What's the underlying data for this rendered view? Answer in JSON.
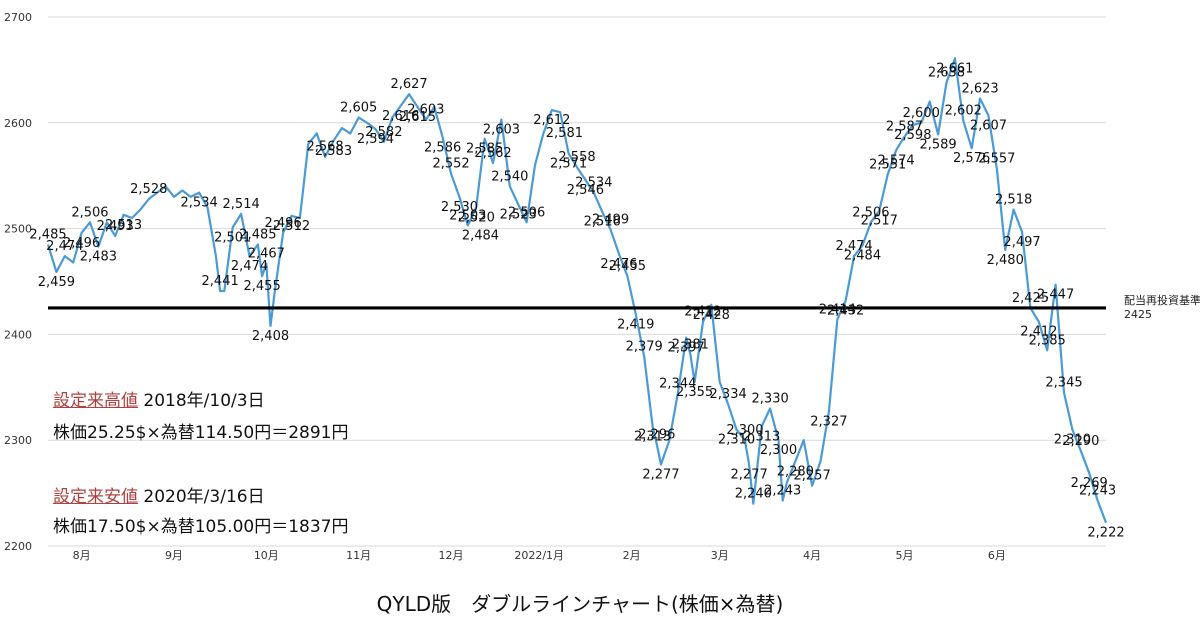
{
  "chart_data": {
    "type": "line",
    "title": "QYLD版　ダブルラインチャート(株価×為替)",
    "ylim": [
      2200,
      2700
    ],
    "yticks": [
      2200,
      2300,
      2400,
      2500,
      2600,
      2700
    ],
    "xlabels": [
      {
        "label": "8月",
        "x": 8
      },
      {
        "label": "9月",
        "x": 30
      },
      {
        "label": "10月",
        "x": 52
      },
      {
        "label": "11月",
        "x": 74
      },
      {
        "label": "12月",
        "x": 96
      },
      {
        "label": "2022/1月",
        "x": 117
      },
      {
        "label": "2月",
        "x": 139
      },
      {
        "label": "3月",
        "x": 160
      },
      {
        "label": "4月",
        "x": 182
      },
      {
        "label": "5月",
        "x": 204
      },
      {
        "label": "6月",
        "x": 226
      }
    ],
    "xlim": [
      0,
      252
    ],
    "grid": true,
    "series": [
      {
        "color": "#4a9ad8",
        "points": [
          [
            0,
            2485
          ],
          [
            2,
            2459
          ],
          [
            4,
            2474
          ],
          [
            6,
            2468
          ],
          [
            8,
            2496
          ],
          [
            10,
            2506
          ],
          [
            12,
            2483
          ],
          [
            14,
            2506
          ],
          [
            16,
            2493
          ],
          [
            18,
            2513
          ],
          [
            20,
            2510
          ],
          [
            22,
            2518
          ],
          [
            24,
            2528
          ],
          [
            26,
            2534
          ],
          [
            28,
            2540
          ],
          [
            30,
            2530
          ],
          [
            32,
            2536
          ],
          [
            34,
            2530
          ],
          [
            36,
            2534
          ],
          [
            38,
            2520
          ],
          [
            40,
            2474
          ],
          [
            41,
            2441
          ],
          [
            42,
            2441
          ],
          [
            44,
            2501
          ],
          [
            46,
            2514
          ],
          [
            48,
            2474
          ],
          [
            50,
            2485
          ],
          [
            51,
            2455
          ],
          [
            52,
            2467
          ],
          [
            53,
            2408
          ],
          [
            54,
            2440
          ],
          [
            56,
            2496
          ],
          [
            58,
            2512
          ],
          [
            60,
            2510
          ],
          [
            62,
            2580
          ],
          [
            64,
            2590
          ],
          [
            66,
            2568
          ],
          [
            68,
            2583
          ],
          [
            70,
            2595
          ],
          [
            72,
            2590
          ],
          [
            74,
            2605
          ],
          [
            76,
            2600
          ],
          [
            78,
            2594
          ],
          [
            80,
            2582
          ],
          [
            82,
            2605
          ],
          [
            84,
            2616
          ],
          [
            86,
            2627
          ],
          [
            88,
            2615
          ],
          [
            90,
            2603
          ],
          [
            92,
            2615
          ],
          [
            94,
            2586
          ],
          [
            96,
            2552
          ],
          [
            98,
            2530
          ],
          [
            100,
            2503
          ],
          [
            102,
            2520
          ],
          [
            104,
            2585
          ],
          [
            106,
            2562
          ],
          [
            108,
            2603
          ],
          [
            110,
            2540
          ],
          [
            112,
            2523
          ],
          [
            114,
            2506
          ],
          [
            116,
            2560
          ],
          [
            118,
            2590
          ],
          [
            120,
            2612
          ],
          [
            122,
            2610
          ],
          [
            124,
            2571
          ],
          [
            126,
            2558
          ],
          [
            128,
            2546
          ],
          [
            130,
            2534
          ],
          [
            132,
            2516
          ],
          [
            134,
            2499
          ],
          [
            136,
            2476
          ],
          [
            138,
            2455
          ],
          [
            140,
            2419
          ],
          [
            142,
            2379
          ],
          [
            144,
            2313
          ],
          [
            145,
            2296
          ],
          [
            146,
            2277
          ],
          [
            148,
            2300
          ],
          [
            150,
            2344
          ],
          [
            152,
            2397
          ],
          [
            153,
            2381
          ],
          [
            154,
            2355
          ],
          [
            156,
            2412
          ],
          [
            158,
            2428
          ],
          [
            160,
            2355
          ],
          [
            162,
            2334
          ],
          [
            164,
            2310
          ],
          [
            166,
            2300
          ],
          [
            167,
            2277
          ],
          [
            168,
            2240
          ],
          [
            170,
            2313
          ],
          [
            172,
            2330
          ],
          [
            174,
            2300
          ],
          [
            175,
            2243
          ],
          [
            176,
            2260
          ],
          [
            178,
            2280
          ],
          [
            180,
            2300
          ],
          [
            182,
            2257
          ],
          [
            184,
            2280
          ],
          [
            186,
            2327
          ],
          [
            188,
            2414
          ],
          [
            190,
            2432
          ],
          [
            192,
            2474
          ],
          [
            194,
            2484
          ],
          [
            196,
            2506
          ],
          [
            198,
            2517
          ],
          [
            200,
            2551
          ],
          [
            202,
            2574
          ],
          [
            204,
            2587
          ],
          [
            206,
            2598
          ],
          [
            208,
            2600
          ],
          [
            210,
            2620
          ],
          [
            212,
            2589
          ],
          [
            214,
            2638
          ],
          [
            216,
            2661
          ],
          [
            218,
            2602
          ],
          [
            220,
            2576
          ],
          [
            222,
            2623
          ],
          [
            224,
            2607
          ],
          [
            226,
            2557
          ],
          [
            228,
            2480
          ],
          [
            230,
            2518
          ],
          [
            232,
            2497
          ],
          [
            234,
            2425
          ],
          [
            236,
            2412
          ],
          [
            238,
            2385
          ],
          [
            240,
            2447
          ],
          [
            242,
            2345
          ],
          [
            244,
            2310
          ],
          [
            246,
            2290
          ],
          [
            248,
            2269
          ],
          [
            250,
            2243
          ],
          [
            252,
            2222
          ]
        ]
      }
    ],
    "data_labels": [
      {
        "text": "2,485",
        "x": 0,
        "y": 2485
      },
      {
        "text": "2,459",
        "x": 2,
        "y": 2459
      },
      {
        "text": "2,474",
        "x": 4,
        "y": 2474
      },
      {
        "text": "2,496",
        "x": 8,
        "y": 2496
      },
      {
        "text": "2,506",
        "x": 10,
        "y": 2506
      },
      {
        "text": "2,483",
        "x": 12,
        "y": 2483
      },
      {
        "text": "2,493",
        "x": 16,
        "y": 2493
      },
      {
        "text": "2,513",
        "x": 18,
        "y": 2513
      },
      {
        "text": "2,528",
        "x": 24,
        "y": 2528
      },
      {
        "text": "2,534",
        "x": 36,
        "y": 2534
      },
      {
        "text": "2,441",
        "x": 41,
        "y": 2441
      },
      {
        "text": "2,501",
        "x": 44,
        "y": 2501
      },
      {
        "text": "2,514",
        "x": 46,
        "y": 2514
      },
      {
        "text": "2,474",
        "x": 48,
        "y": 2474
      },
      {
        "text": "2,485",
        "x": 50,
        "y": 2485
      },
      {
        "text": "2,455",
        "x": 51,
        "y": 2455
      },
      {
        "text": "2,467",
        "x": 52,
        "y": 2467
      },
      {
        "text": "2,408",
        "x": 53,
        "y": 2408
      },
      {
        "text": "2,496",
        "x": 56,
        "y": 2496
      },
      {
        "text": "2,512",
        "x": 58,
        "y": 2512
      },
      {
        "text": "2,568",
        "x": 66,
        "y": 2568
      },
      {
        "text": "2,583",
        "x": 68,
        "y": 2583
      },
      {
        "text": "2,605",
        "x": 74,
        "y": 2605
      },
      {
        "text": "2,594",
        "x": 78,
        "y": 2594
      },
      {
        "text": "2,582",
        "x": 80,
        "y": 2582
      },
      {
        "text": "2,616",
        "x": 84,
        "y": 2616
      },
      {
        "text": "2,627",
        "x": 86,
        "y": 2627
      },
      {
        "text": "2,615",
        "x": 88,
        "y": 2615
      },
      {
        "text": "2,603",
        "x": 90,
        "y": 2603
      },
      {
        "text": "2,586",
        "x": 94,
        "y": 2586
      },
      {
        "text": "2,552",
        "x": 96,
        "y": 2552
      },
      {
        "text": "2,530",
        "x": 98,
        "y": 2530
      },
      {
        "text": "2,503",
        "x": 100,
        "y": 2503
      },
      {
        "text": "2,520",
        "x": 102,
        "y": 2520
      },
      {
        "text": "2,484",
        "x": 103,
        "y": 2484
      },
      {
        "text": "2,585",
        "x": 104,
        "y": 2585
      },
      {
        "text": "2,562",
        "x": 106,
        "y": 2562
      },
      {
        "text": "2,603",
        "x": 108,
        "y": 2603
      },
      {
        "text": "2,540",
        "x": 110,
        "y": 2540
      },
      {
        "text": "2,523",
        "x": 112,
        "y": 2523
      },
      {
        "text": "2,506",
        "x": 114,
        "y": 2506
      },
      {
        "text": "2,612",
        "x": 120,
        "y": 2612
      },
      {
        "text": "2,581",
        "x": 123,
        "y": 2581
      },
      {
        "text": "2,571",
        "x": 124,
        "y": 2571
      },
      {
        "text": "2,558",
        "x": 126,
        "y": 2558
      },
      {
        "text": "2,546",
        "x": 128,
        "y": 2546
      },
      {
        "text": "2,534",
        "x": 130,
        "y": 2534
      },
      {
        "text": "2,516",
        "x": 132,
        "y": 2516
      },
      {
        "text": "2,499",
        "x": 134,
        "y": 2499
      },
      {
        "text": "2,476",
        "x": 136,
        "y": 2476
      },
      {
        "text": "2,455",
        "x": 138,
        "y": 2455
      },
      {
        "text": "2,419",
        "x": 140,
        "y": 2419
      },
      {
        "text": "2,379",
        "x": 142,
        "y": 2379
      },
      {
        "text": "2,313",
        "x": 144,
        "y": 2313
      },
      {
        "text": "2,296",
        "x": 145,
        "y": 2296
      },
      {
        "text": "2,277",
        "x": 146,
        "y": 2277
      },
      {
        "text": "2,344",
        "x": 150,
        "y": 2344
      },
      {
        "text": "2,397",
        "x": 152,
        "y": 2397
      },
      {
        "text": "2,381",
        "x": 153,
        "y": 2381
      },
      {
        "text": "2,355",
        "x": 154,
        "y": 2355
      },
      {
        "text": "2,412",
        "x": 156,
        "y": 2412
      },
      {
        "text": "2,428",
        "x": 158,
        "y": 2428
      },
      {
        "text": "2,334",
        "x": 162,
        "y": 2334
      },
      {
        "text": "2,310",
        "x": 164,
        "y": 2310
      },
      {
        "text": "2,300",
        "x": 166,
        "y": 2300
      },
      {
        "text": "2,277",
        "x": 167,
        "y": 2277
      },
      {
        "text": "2,240",
        "x": 168,
        "y": 2240
      },
      {
        "text": "2,313",
        "x": 170,
        "y": 2313
      },
      {
        "text": "2,330",
        "x": 172,
        "y": 2330
      },
      {
        "text": "2,300",
        "x": 174,
        "y": 2300
      },
      {
        "text": "2,243",
        "x": 175,
        "y": 2243
      },
      {
        "text": "2,280",
        "x": 178,
        "y": 2280
      },
      {
        "text": "2,257",
        "x": 182,
        "y": 2257
      },
      {
        "text": "2,327",
        "x": 186,
        "y": 2327
      },
      {
        "text": "2,414",
        "x": 188,
        "y": 2414
      },
      {
        "text": "2,432",
        "x": 190,
        "y": 2432
      },
      {
        "text": "2,474",
        "x": 192,
        "y": 2474
      },
      {
        "text": "2,484",
        "x": 194,
        "y": 2484
      },
      {
        "text": "2,506",
        "x": 196,
        "y": 2506
      },
      {
        "text": "2,517",
        "x": 198,
        "y": 2517
      },
      {
        "text": "2,551",
        "x": 200,
        "y": 2551
      },
      {
        "text": "2,574",
        "x": 202,
        "y": 2574
      },
      {
        "text": "2,587",
        "x": 204,
        "y": 2587
      },
      {
        "text": "2,598",
        "x": 206,
        "y": 2598
      },
      {
        "text": "2,600",
        "x": 208,
        "y": 2600
      },
      {
        "text": "2,589",
        "x": 212,
        "y": 2589
      },
      {
        "text": "2,638",
        "x": 214,
        "y": 2638
      },
      {
        "text": "2,661",
        "x": 216,
        "y": 2661
      },
      {
        "text": "2,602",
        "x": 218,
        "y": 2602
      },
      {
        "text": "2,576",
        "x": 220,
        "y": 2576
      },
      {
        "text": "2,623",
        "x": 222,
        "y": 2623
      },
      {
        "text": "2,607",
        "x": 224,
        "y": 2607
      },
      {
        "text": "2,557",
        "x": 226,
        "y": 2557
      },
      {
        "text": "2,480",
        "x": 228,
        "y": 2480
      },
      {
        "text": "2,518",
        "x": 230,
        "y": 2518
      },
      {
        "text": "2,497",
        "x": 232,
        "y": 2497
      },
      {
        "text": "2,425",
        "x": 234,
        "y": 2425
      },
      {
        "text": "2,412",
        "x": 236,
        "y": 2412
      },
      {
        "text": "2,385",
        "x": 238,
        "y": 2385
      },
      {
        "text": "2,447",
        "x": 240,
        "y": 2447
      },
      {
        "text": "2,345",
        "x": 242,
        "y": 2345
      },
      {
        "text": "2,310",
        "x": 244,
        "y": 2310
      },
      {
        "text": "2,290",
        "x": 246,
        "y": 2290
      },
      {
        "text": "2,269",
        "x": 248,
        "y": 2269
      },
      {
        "text": "2,243",
        "x": 250,
        "y": 2243
      },
      {
        "text": "2,222",
        "x": 252,
        "y": 2222
      }
    ],
    "reference_line": {
      "value": 2425,
      "label": "配当再投資基準",
      "value_label": "2425",
      "color": "#000000"
    }
  },
  "notes": {
    "high_tag": "設定来高値",
    "high_date": " 2018年/10/3日",
    "high_detail": "株価25.25$×為替114.50円＝2891円",
    "low_tag": "設定来安値",
    "low_date": " 2020年/3/16日",
    "low_detail": "株価17.50$×為替105.00円＝1837円"
  },
  "footer_title": "QYLD版　ダブルラインチャート(株価×為替)"
}
